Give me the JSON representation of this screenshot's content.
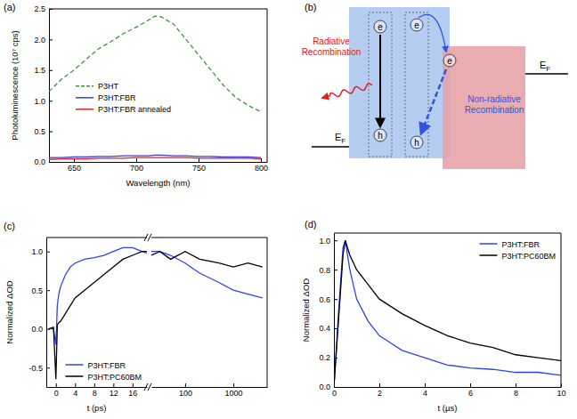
{
  "chart_data": [
    {
      "type": "line",
      "panel_label": "(a)",
      "x_label": "Wavelength (nm)",
      "y_label": "Photoluminescence (10⁷ cps)",
      "x": [
        630,
        640,
        650,
        660,
        670,
        680,
        690,
        700,
        710,
        715,
        720,
        730,
        740,
        750,
        760,
        770,
        780,
        790,
        800
      ],
      "series": [
        {
          "name": "P3HT",
          "color": "#3a9a3a",
          "line_style": "dashed",
          "values": [
            1.15,
            1.35,
            1.5,
            1.68,
            1.85,
            1.97,
            2.1,
            2.2,
            2.32,
            2.38,
            2.37,
            2.25,
            2.0,
            1.75,
            1.5,
            1.25,
            1.05,
            0.92,
            0.82
          ]
        },
        {
          "name": "P3HT:FBR",
          "color": "#3040e0",
          "line_style": "solid",
          "values": [
            0.07,
            0.07,
            0.08,
            0.08,
            0.09,
            0.09,
            0.1,
            0.1,
            0.1,
            0.11,
            0.11,
            0.1,
            0.1,
            0.09,
            0.09,
            0.08,
            0.08,
            0.08,
            0.07
          ]
        },
        {
          "name": "P3HT:FBR annealed",
          "color": "#e02020",
          "line_style": "solid",
          "values": [
            0.04,
            0.05,
            0.05,
            0.05,
            0.06,
            0.06,
            0.06,
            0.07,
            0.07,
            0.07,
            0.07,
            0.07,
            0.07,
            0.06,
            0.06,
            0.06,
            0.06,
            0.06,
            0.05
          ]
        }
      ],
      "xlim": [
        630,
        805
      ],
      "xticks": [
        650,
        700,
        750,
        800
      ],
      "ylim": [
        0,
        2.5
      ],
      "yticks": [
        {
          "value": 0,
          "label": "0.0"
        },
        0.5,
        {
          "value": 1,
          "label": "1.0"
        },
        1.5,
        {
          "value": 2,
          "label": "2.0"
        },
        2.5
      ],
      "legend": "center left"
    },
    {
      "type": "line",
      "panel_label": "(c)",
      "x_label": "t (ps)",
      "y_label": "Normalized ΔOD",
      "x": [
        -1.5,
        -0.5,
        0,
        0.3,
        0.6,
        1,
        2,
        3,
        4,
        6,
        8,
        10,
        12,
        14,
        16,
        18,
        19
      ],
      "series": [
        {
          "name": "P3HT:FBR",
          "color": "#2f3fff",
          "line_style": "solid",
          "values": [
            0,
            0,
            -0.2,
            0.3,
            0.45,
            0.55,
            0.7,
            0.8,
            0.85,
            0.9,
            0.92,
            0.95,
            1.0,
            1.05,
            1.05,
            1.0,
            0.98
          ]
        },
        {
          "name": "P3HT:PC60BM",
          "color": "#000000",
          "line_style": "solid",
          "values": [
            0,
            0.02,
            -0.65,
            0.05,
            0.08,
            0.1,
            0.2,
            0.3,
            0.4,
            0.5,
            0.6,
            0.7,
            0.8,
            0.9,
            0.95,
            1.0,
            1.0
          ]
        }
      ],
      "xlim": [
        -2,
        19
      ],
      "xticks": [
        0,
        4,
        8,
        12,
        16
      ],
      "ylim": [
        -0.75,
        1.18
      ],
      "yticks": [
        -0.5,
        {
          "value": 0,
          "label": "0.0"
        },
        0.5,
        {
          "value": 1,
          "label": "1.0"
        }
      ],
      "legend": "lower right"
    },
    {
      "type": "line",
      "x": [
        20,
        30,
        50,
        100,
        200,
        500,
        1000,
        2000,
        4000
      ],
      "series": [
        {
          "color": "#2f3fff",
          "line_style": "solid",
          "values": [
            1.0,
            1.0,
            0.95,
            0.85,
            0.72,
            0.6,
            0.5,
            0.45,
            0.4
          ]
        },
        {
          "color": "#000000",
          "line_style": "solid",
          "values": [
            0.95,
            1.0,
            0.9,
            1.0,
            0.9,
            0.85,
            0.8,
            0.85,
            0.8
          ]
        }
      ],
      "xlim": [
        20,
        5000
      ],
      "xticks": [
        100,
        1000
      ],
      "ylim": [
        -0.75,
        1.18
      ],
      "log": "x",
      "tick_labels": "x"
    },
    {
      "type": "line",
      "panel_label": "(d)",
      "x_label": "t (µs)",
      "y_label": "Normalized ΔOD",
      "x": [
        0,
        0.2,
        0.4,
        0.5,
        0.7,
        1,
        1.5,
        2,
        2.5,
        3,
        4,
        5,
        6,
        7,
        8,
        9,
        10
      ],
      "series": [
        {
          "name": "P3HT:FBR",
          "color": "#2f3fff",
          "line_style": "solid",
          "values": [
            0,
            0.5,
            0.95,
            1.0,
            0.8,
            0.6,
            0.45,
            0.35,
            0.3,
            0.25,
            0.2,
            0.15,
            0.13,
            0.12,
            0.1,
            0.1,
            0.08
          ]
        },
        {
          "name": "P3HT:PC60BM",
          "color": "#000000",
          "line_style": "solid",
          "values": [
            0,
            0.45,
            0.9,
            1.0,
            0.9,
            0.8,
            0.7,
            0.6,
            0.55,
            0.5,
            0.42,
            0.35,
            0.3,
            0.27,
            0.22,
            0.2,
            0.18
          ]
        }
      ],
      "xlim": [
        0,
        10
      ],
      "xticks": [
        0,
        2,
        4,
        6,
        8,
        10
      ],
      "ylim": [
        0,
        1.05
      ],
      "yticks": [
        {
          "value": 0,
          "label": "0.0"
        },
        0.2,
        0.4,
        0.6,
        0.8,
        {
          "value": 1,
          "label": "1.0"
        }
      ],
      "legend": "upper right"
    }
  ],
  "diagram": {
    "panel_label": "(b)",
    "radiative_label": "Radiative Recombination",
    "nonradiative_label": "Non-radiative Recombination",
    "fermi_level": {
      "symbol": "E",
      "subscript": "F"
    },
    "electrons": [
      "e",
      "e",
      "e"
    ],
    "holes": [
      "h",
      "h"
    ]
  }
}
